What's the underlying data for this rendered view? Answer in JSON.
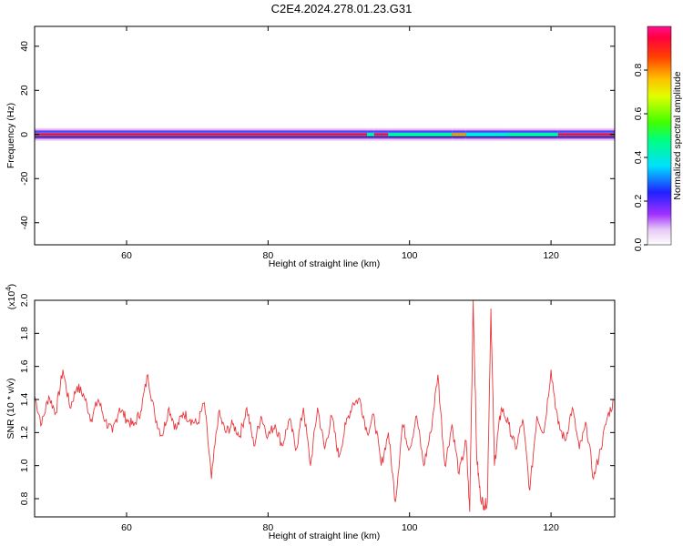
{
  "figure_title": "C2E4.2024.278.01.23.G31",
  "chart_data": [
    {
      "type": "heatmap",
      "xlabel": "Height of straight line (km)",
      "ylabel": "Frequency (Hz)",
      "xlim": [
        47,
        129
      ],
      "ylim": [
        -50,
        49
      ],
      "x_ticks": [
        60,
        80,
        100,
        120
      ],
      "y_ticks": [
        -40,
        -20,
        0,
        20,
        40
      ],
      "colorbar": {
        "label": "Normalized spectral amplitude",
        "range": [
          0,
          1
        ],
        "ticks": [
          0.0,
          0.2,
          0.4,
          0.6,
          0.8
        ],
        "tick_labels": [
          "0.0",
          "0.2",
          "0.4",
          "0.6",
          "0.8"
        ]
      },
      "segments": [
        {
          "from": 47,
          "to": 94,
          "peak": 0.97
        },
        {
          "from": 94,
          "to": 95,
          "peak": 0.45
        },
        {
          "from": 95,
          "to": 97,
          "peak": 0.97
        },
        {
          "from": 97,
          "to": 106,
          "peak": 0.45
        },
        {
          "from": 106,
          "to": 108,
          "peak": 0.8
        },
        {
          "from": 108,
          "to": 114,
          "peak": 0.4
        },
        {
          "from": 114,
          "to": 121,
          "peak": 0.45
        },
        {
          "from": 121,
          "to": 129,
          "peak": 0.97
        }
      ]
    },
    {
      "type": "line",
      "xlabel": "Height of straight line (km)",
      "ylabel": "SNR (10 * v/v)",
      "y_multiplier": "(x10",
      "y_multiplier_exp": "4",
      "y_multiplier_close": ")",
      "xlim": [
        47,
        129
      ],
      "ylim": [
        0.69,
        2.0
      ],
      "x_ticks": [
        60,
        80,
        100,
        120
      ],
      "y_ticks": [
        0.8,
        1.0,
        1.2,
        1.4,
        1.6,
        1.8,
        2.0
      ],
      "y_tick_labels": [
        "0.8",
        "1.0",
        "1.2",
        "1.4",
        "1.6",
        "1.8",
        "2.0"
      ],
      "series": [
        {
          "color": "#e8373c",
          "x": [
            47,
            48,
            49,
            50,
            51,
            52,
            53,
            54,
            55,
            56,
            57,
            58,
            59,
            60,
            61,
            62,
            63,
            64,
            65,
            66,
            67,
            68,
            69,
            70,
            71,
            72,
            73,
            74,
            75,
            76,
            77,
            78,
            79,
            80,
            81,
            82,
            83,
            84,
            85,
            86,
            87,
            88,
            89,
            90,
            91,
            92,
            93,
            94,
            95,
            96,
            97,
            98,
            99,
            100,
            101,
            102,
            103,
            104,
            105,
            106,
            107,
            108,
            108.5,
            109,
            109.5,
            110,
            110.5,
            111,
            111.5,
            112,
            112.5,
            113,
            114,
            115,
            116,
            117,
            118,
            119,
            120,
            121,
            122,
            123,
            124,
            125,
            126,
            127,
            128,
            129
          ],
          "y": [
            1.42,
            1.25,
            1.42,
            1.32,
            1.58,
            1.35,
            1.48,
            1.42,
            1.28,
            1.4,
            1.27,
            1.2,
            1.35,
            1.28,
            1.24,
            1.33,
            1.55,
            1.3,
            1.18,
            1.35,
            1.22,
            1.32,
            1.28,
            1.25,
            1.38,
            0.92,
            1.32,
            1.2,
            1.25,
            1.18,
            1.35,
            1.12,
            1.3,
            1.18,
            1.25,
            1.12,
            1.28,
            1.1,
            1.35,
            1.0,
            1.35,
            1.1,
            1.3,
            1.05,
            1.25,
            1.38,
            1.4,
            1.2,
            1.3,
            1.0,
            1.2,
            0.78,
            1.25,
            1.1,
            1.3,
            1.0,
            1.2,
            1.55,
            1.0,
            1.25,
            0.95,
            1.15,
            0.72,
            2.0,
            1.05,
            0.82,
            0.76,
            0.78,
            1.95,
            1.0,
            1.2,
            1.35,
            1.25,
            1.1,
            1.28,
            0.85,
            1.3,
            1.2,
            1.58,
            1.25,
            1.15,
            1.35,
            1.1,
            1.25,
            0.92,
            1.1,
            1.3,
            1.4
          ]
        }
      ]
    }
  ]
}
